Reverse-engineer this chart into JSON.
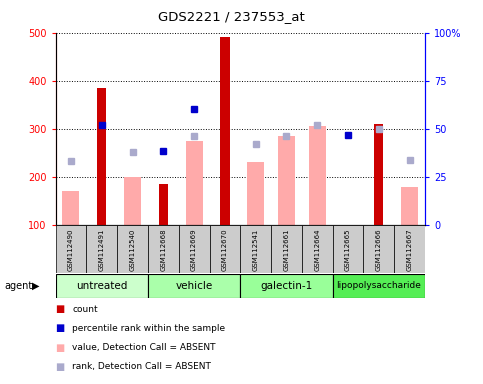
{
  "title": "GDS2221 / 237553_at",
  "samples": [
    "GSM112490",
    "GSM112491",
    "GSM112540",
    "GSM112668",
    "GSM112669",
    "GSM112670",
    "GSM112541",
    "GSM112661",
    "GSM112664",
    "GSM112665",
    "GSM112666",
    "GSM112667"
  ],
  "group_names": [
    "untreated",
    "vehicle",
    "galectin-1",
    "lipopolysaccharide"
  ],
  "group_ranges": [
    [
      0,
      2
    ],
    [
      3,
      5
    ],
    [
      6,
      8
    ],
    [
      9,
      11
    ]
  ],
  "group_colors": [
    "#ccffcc",
    "#aaffaa",
    "#99ff99",
    "#55ee55"
  ],
  "red_bars": [
    null,
    385,
    null,
    185,
    null,
    490,
    null,
    null,
    null,
    null,
    310,
    null
  ],
  "pink_bars": [
    170,
    null,
    200,
    null,
    275,
    null,
    230,
    285,
    305,
    null,
    null,
    178
  ],
  "blue_squares": [
    null,
    308,
    null,
    253,
    340,
    null,
    null,
    null,
    null,
    287,
    null,
    null
  ],
  "lavender_squares": [
    232,
    null,
    252,
    null,
    285,
    null,
    268,
    285,
    308,
    null,
    300,
    235
  ],
  "ylim_left": [
    100,
    500
  ],
  "yticks_left": [
    100,
    200,
    300,
    400,
    500
  ],
  "yticks_right": [
    0,
    25,
    50,
    75,
    100
  ],
  "ytick_labels_right": [
    "0",
    "25",
    "50",
    "75",
    "100%"
  ],
  "bar_color_red": "#cc0000",
  "bar_color_pink": "#ffaaaa",
  "sq_color_blue": "#0000cc",
  "sq_color_lavender": "#aaaacc",
  "sample_box_color": "#cccccc",
  "agent_label": "agent"
}
